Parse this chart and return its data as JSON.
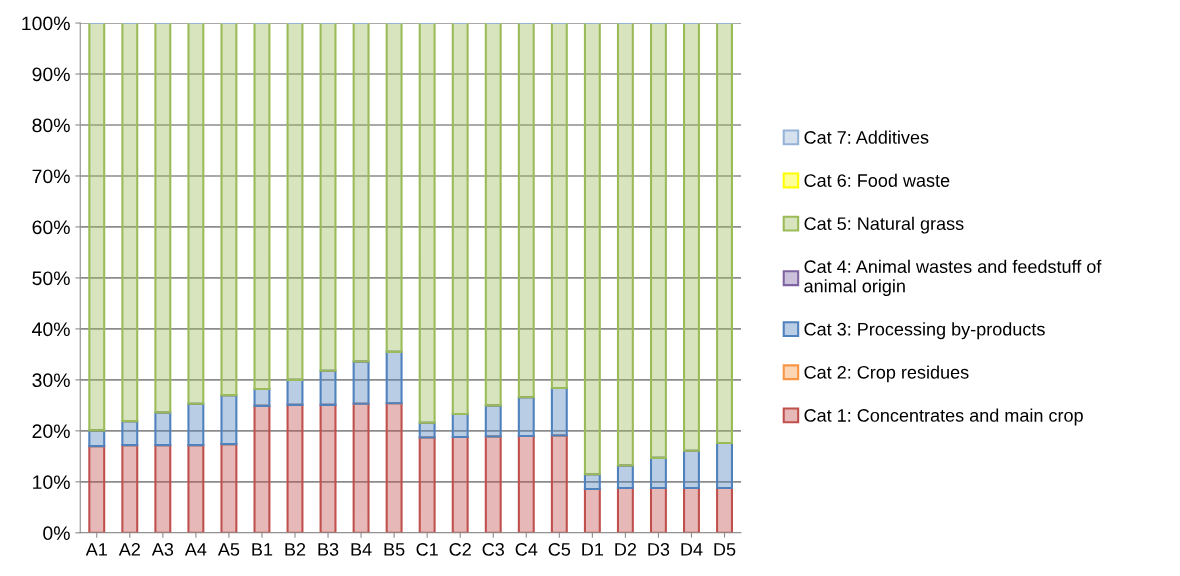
{
  "chart_data": {
    "type": "bar",
    "stacked": true,
    "categories": [
      "A1",
      "A2",
      "A3",
      "A4",
      "A5",
      "B1",
      "B2",
      "B3",
      "B4",
      "B5",
      "C1",
      "C2",
      "C3",
      "C4",
      "C5",
      "D1",
      "D2",
      "D3",
      "D4",
      "D5"
    ],
    "series": [
      {
        "name": "Cat 1: Concentrates and main crop",
        "color": "#c0504d",
        "values": [
          17.0,
          17.2,
          17.2,
          17.2,
          17.4,
          24.9,
          25.1,
          25.1,
          25.3,
          25.4,
          18.7,
          18.8,
          18.9,
          19.0,
          19.1,
          8.6,
          8.8,
          8.8,
          8.8,
          8.8
        ]
      },
      {
        "name": "Cat 2: Crop residues",
        "color": "#f79646",
        "values": [
          0,
          0,
          0,
          0,
          0,
          0,
          0,
          0,
          0,
          0,
          0,
          0,
          0,
          0,
          0,
          0,
          0,
          0,
          0,
          0
        ]
      },
      {
        "name": "Cat 3: Processing by-products",
        "color": "#4f81bd",
        "values": [
          3.1,
          4.7,
          6.4,
          8.1,
          9.6,
          3.3,
          4.9,
          6.7,
          8.3,
          10.1,
          2.9,
          4.5,
          6.1,
          7.6,
          9.3,
          2.9,
          4.4,
          5.9,
          7.3,
          8.8
        ]
      },
      {
        "name": "Cat 4: Animal wastes and feedstuff of\nanimal origin",
        "color": "#8064a2",
        "values": [
          0,
          0,
          0,
          0,
          0,
          0,
          0,
          0,
          0,
          0,
          0,
          0,
          0,
          0,
          0,
          0,
          0,
          0,
          0,
          0
        ]
      },
      {
        "name": "Cat 5: Natural grass",
        "color": "#9bbb59",
        "values": [
          79.9,
          78.1,
          76.4,
          74.7,
          73.0,
          71.8,
          70.0,
          68.2,
          66.4,
          64.5,
          78.4,
          76.7,
          75.0,
          73.4,
          71.6,
          88.5,
          86.8,
          85.3,
          83.9,
          82.4
        ]
      },
      {
        "name": "Cat 6: Food waste",
        "color": "#ffff00",
        "values": [
          0,
          0,
          0,
          0,
          0,
          0,
          0,
          0,
          0,
          0,
          0,
          0,
          0,
          0,
          0,
          0,
          0,
          0,
          0,
          0
        ]
      },
      {
        "name": "Cat 7: Additives",
        "color": "#95b3d7",
        "values": [
          0,
          0,
          0,
          0,
          0,
          0,
          0,
          0,
          0,
          0,
          0,
          0,
          0,
          0,
          0,
          0,
          0,
          0,
          0,
          0
        ]
      }
    ],
    "ylim": [
      0,
      100
    ],
    "yticks": [
      {
        "value": 0,
        "label": "0%"
      },
      {
        "value": 10,
        "label": "10%"
      },
      {
        "value": 20,
        "label": "20%"
      },
      {
        "value": 30,
        "label": "30%"
      },
      {
        "value": 40,
        "label": "40%"
      },
      {
        "value": 50,
        "label": "50%"
      },
      {
        "value": 60,
        "label": "60%"
      },
      {
        "value": 70,
        "label": "70%"
      },
      {
        "value": 80,
        "label": "80%"
      },
      {
        "value": 90,
        "label": "90%"
      },
      {
        "value": 100,
        "label": "100%"
      }
    ],
    "grid": "y",
    "legend": "right"
  }
}
